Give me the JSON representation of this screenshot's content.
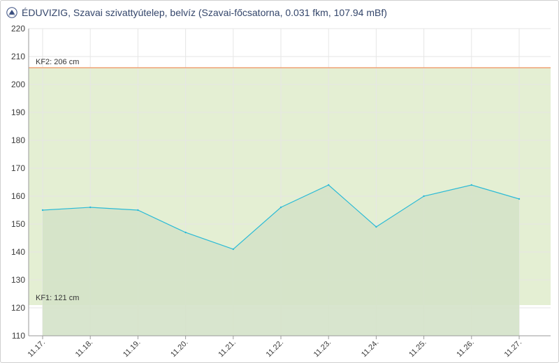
{
  "header": {
    "title": "ÉDUVIZIG, Szavai szivattyútelep, belvíz (Szavai-főcsatorna, 0.031 fkm, 107.94 mBf)",
    "logo_icon": "eduvizig-logo-icon"
  },
  "colors": {
    "line": "#2bbbd6",
    "area": "#d3e2c7",
    "band": "#e4efd3",
    "kf2_line": "#f0a277",
    "below_kf1": "#f1f3f7",
    "grid": "#e6e6e6",
    "title": "#34466b"
  },
  "chart_data": {
    "type": "line",
    "title": "ÉDUVIZIG, Szavai szivattyútelep, belvíz (Szavai-főcsatorna, 0.031 fkm, 107.94 mBf)",
    "xlabel": "",
    "ylabel": "",
    "ylim": [
      110,
      220
    ],
    "y_ticks": [
      "110",
      "120",
      "130",
      "140",
      "150",
      "160",
      "170",
      "180",
      "190",
      "200",
      "210",
      "220"
    ],
    "categories": [
      "11.17.",
      "11.18.",
      "11.19.",
      "11.20.",
      "11.21.",
      "11.22.",
      "11.23.",
      "11.24.",
      "11.25.",
      "11.26.",
      "11.27."
    ],
    "series": [
      {
        "values": [
          155,
          156,
          155,
          147,
          141,
          156,
          164,
          149,
          160,
          164,
          159
        ]
      }
    ],
    "thresholds": [
      {
        "label": "KF1: 121 cm",
        "value": 121
      },
      {
        "label": "KF2: 206 cm",
        "value": 206
      }
    ],
    "grid": true
  }
}
